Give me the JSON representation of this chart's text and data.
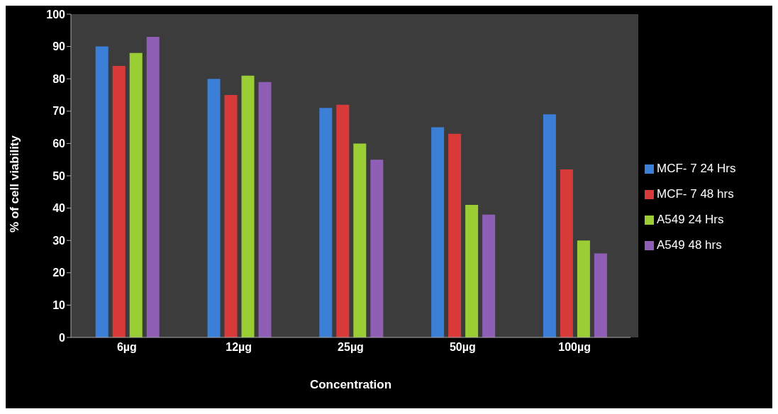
{
  "chart_data": {
    "type": "bar",
    "xlabel": "Concentration",
    "ylabel": "% of cell viability",
    "categories": [
      "6µg",
      "12µg",
      "25µg",
      "50µg",
      "100µg"
    ],
    "series": [
      {
        "name": "MCF- 7 24 Hrs",
        "color": "#3b7fd6",
        "values": [
          90,
          80,
          71,
          65,
          69
        ]
      },
      {
        "name": "MCF- 7 48 hrs",
        "color": "#d83a3a",
        "values": [
          84,
          75,
          72,
          63,
          52
        ]
      },
      {
        "name": "A549 24 Hrs",
        "color": "#9bcd34",
        "values": [
          88,
          81,
          60,
          41,
          30
        ]
      },
      {
        "name": "A549 48 hrs",
        "color": "#8f5fb6",
        "values": [
          93,
          79,
          55,
          38,
          26
        ]
      }
    ],
    "ylim": [
      0,
      100
    ],
    "yticks": [
      0,
      10,
      20,
      30,
      40,
      50,
      60,
      70,
      80,
      90,
      100
    ],
    "grid": false,
    "legend": "right"
  }
}
